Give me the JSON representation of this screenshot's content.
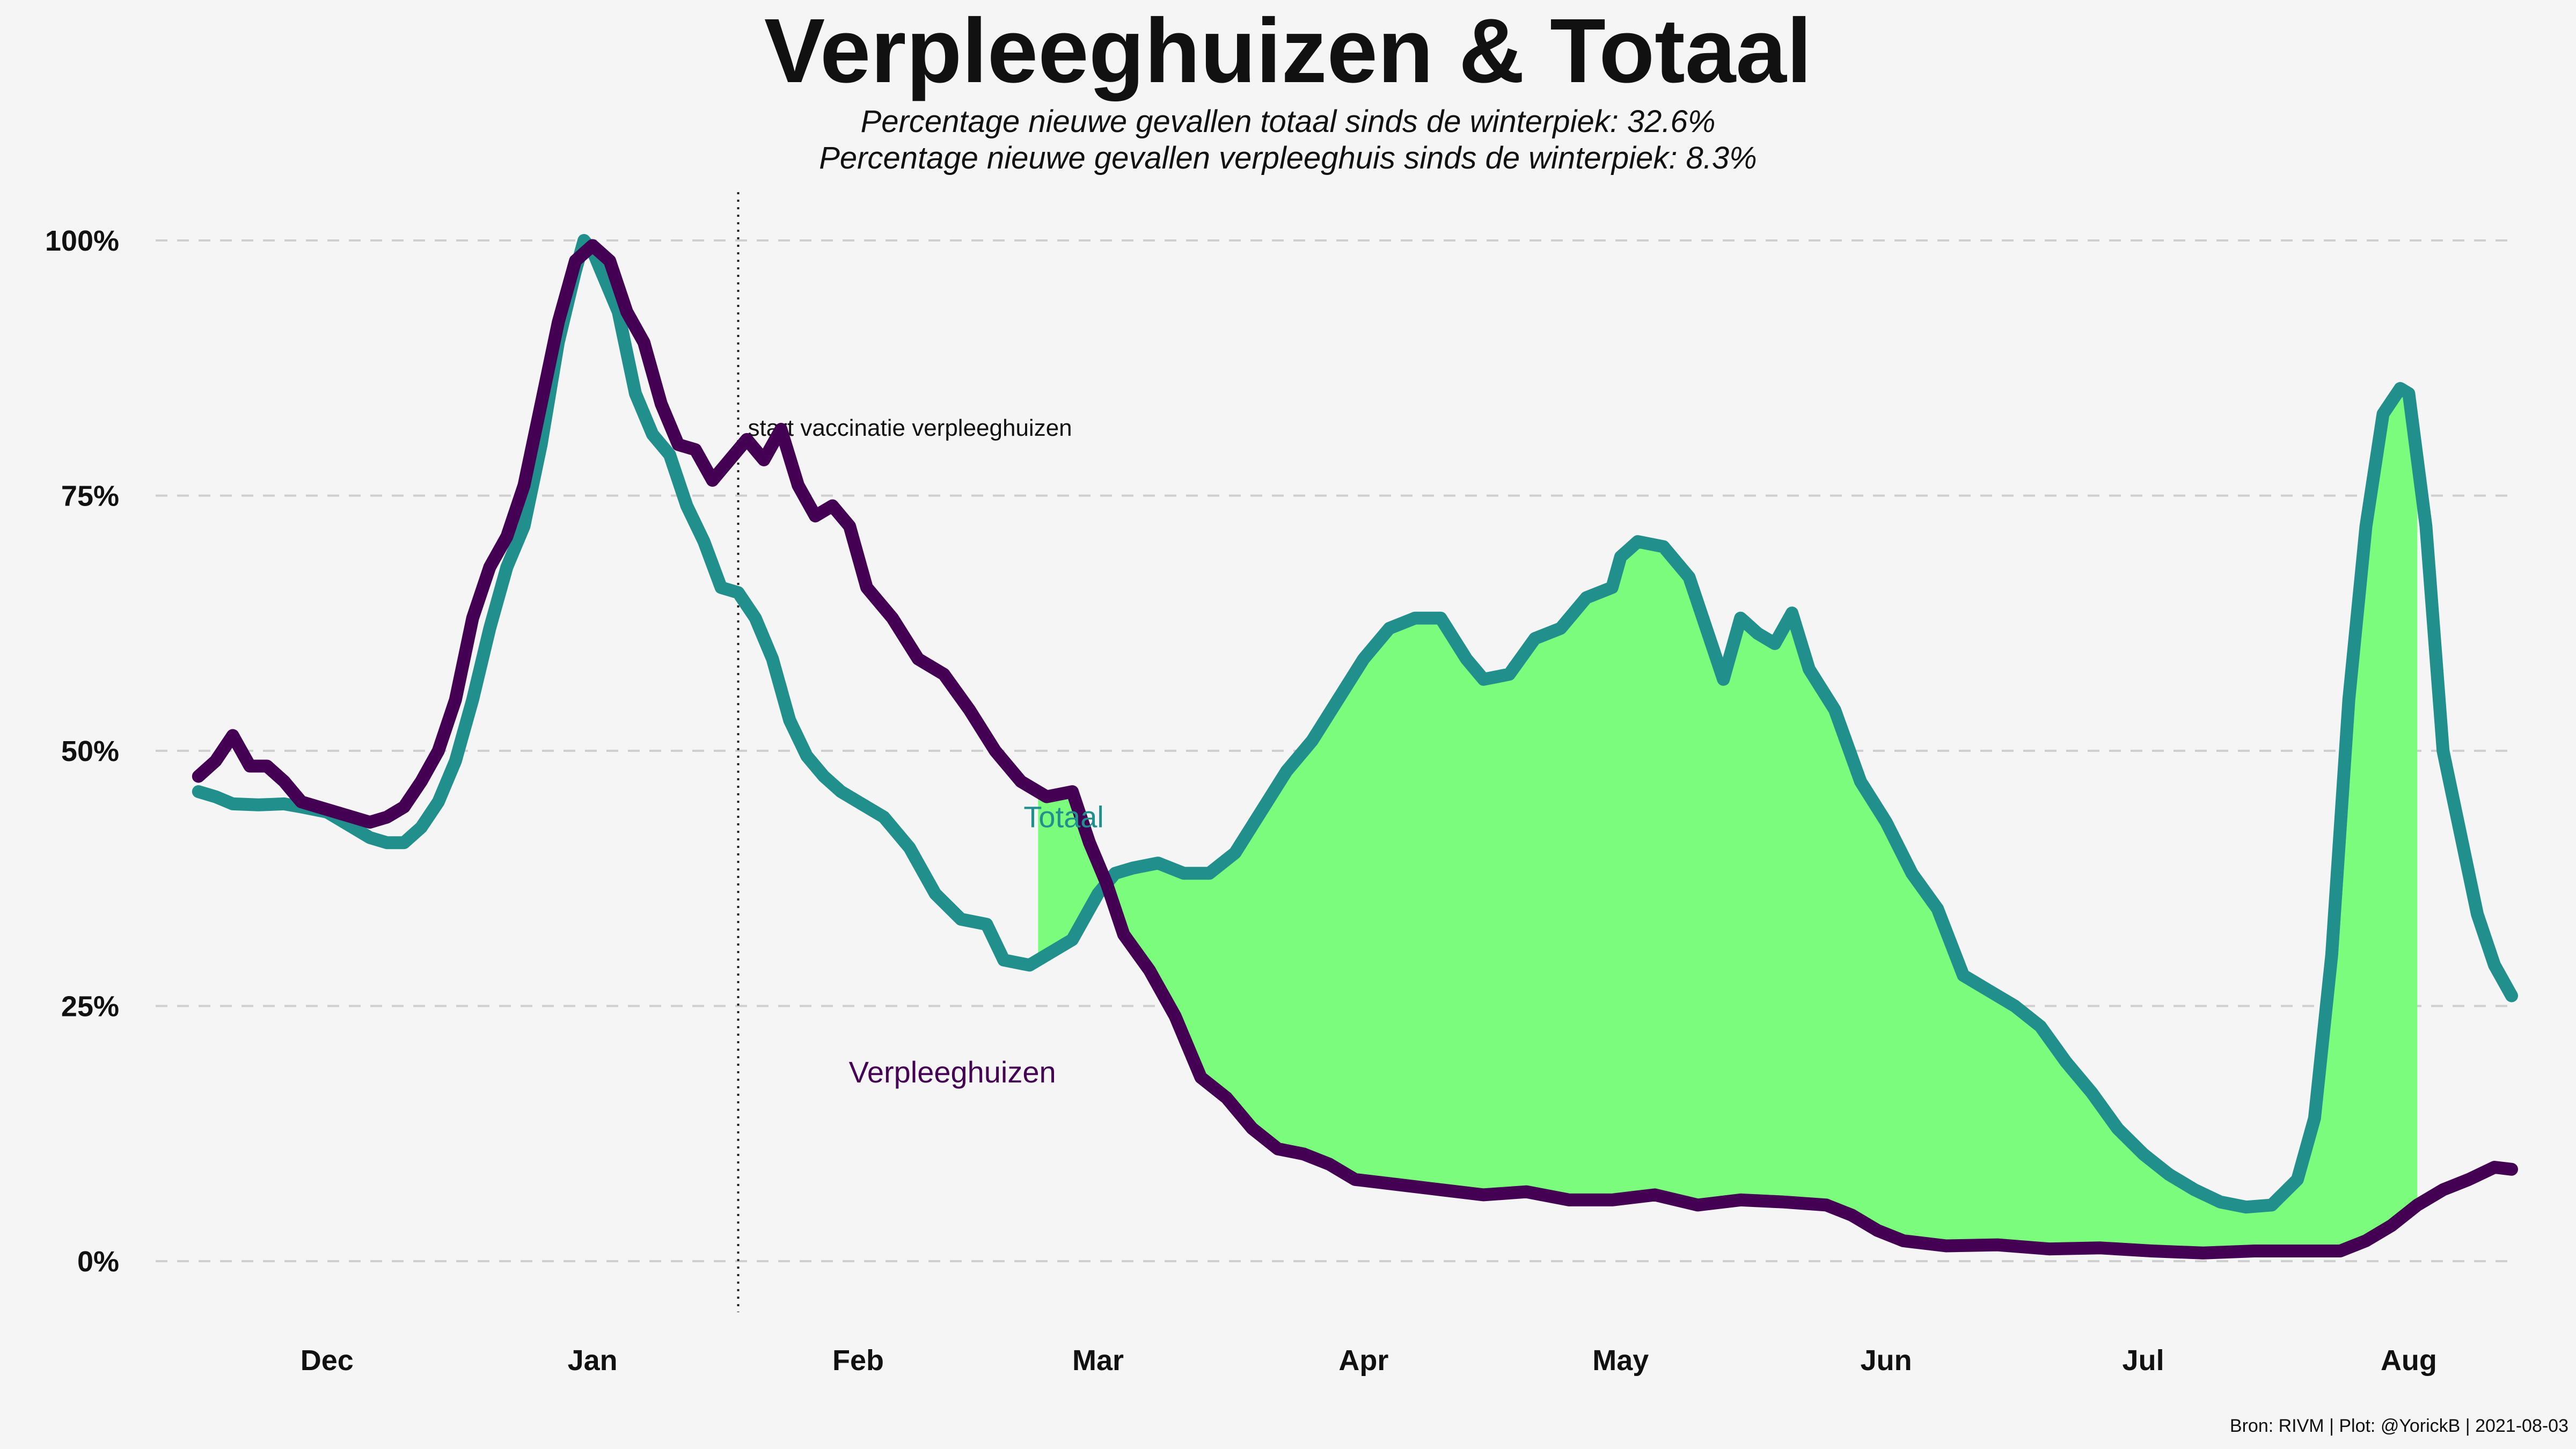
{
  "header": {
    "title": "Verpleeghuizen & Totaal",
    "subtitle_1": "Percentage nieuwe gevallen totaal sinds de winterpiek: 32.6%",
    "subtitle_2": "Percentage nieuwe gevallen verpleeghuis sinds de winterpiek: 8.3%"
  },
  "caption": "Bron: RIVM | Plot: @YorickB  |  2021-08-03",
  "colors": {
    "background": "#f5f5f5",
    "totaal": "#21908d",
    "verpleeghuizen": "#440154",
    "fill": "#7cfc7c",
    "grid": "#cfcfcf"
  },
  "chart_data": {
    "type": "line",
    "title": "Verpleeghuizen & Totaal",
    "xlabel": "",
    "ylabel": "",
    "ylim": [
      0,
      100
    ],
    "y_unit": "percent of winter peak",
    "grid": "horizontal dashed",
    "y_ticks": [
      {
        "value": 0,
        "label": "0%"
      },
      {
        "value": 25,
        "label": "25%"
      },
      {
        "value": 50,
        "label": "50%"
      },
      {
        "value": 75,
        "label": "75%"
      },
      {
        "value": 100,
        "label": "100%"
      }
    ],
    "xlim": [
      "2020-11-11",
      "2021-08-13"
    ],
    "x_ticks": [
      {
        "date": "2020-12-01",
        "label": "Dec"
      },
      {
        "date": "2021-01-01",
        "label": "Jan"
      },
      {
        "date": "2021-02-01",
        "label": "Feb"
      },
      {
        "date": "2021-03-01",
        "label": "Mar"
      },
      {
        "date": "2021-04-01",
        "label": "Apr"
      },
      {
        "date": "2021-05-01",
        "label": "May"
      },
      {
        "date": "2021-06-01",
        "label": "Jun"
      },
      {
        "date": "2021-07-01",
        "label": "Jul"
      },
      {
        "date": "2021-08-01",
        "label": "Aug"
      }
    ],
    "annotation": {
      "date": "2021-01-18",
      "text": "start vaccinatie verpleeghuizen"
    },
    "fill_between": {
      "upper": "Totaal",
      "lower": "Verpleeghuizen",
      "from": "2021-02-22",
      "to": "2021-08-02"
    },
    "series": [
      {
        "name": "Totaal",
        "label_position": {
          "date": "2021-02-25",
          "value": 42.5
        },
        "points": [
          [
            "2020-11-16",
            46
          ],
          [
            "2020-11-18",
            45.5
          ],
          [
            "2020-11-20",
            44.8
          ],
          [
            "2020-11-23",
            44.7
          ],
          [
            "2020-11-26",
            44.8
          ],
          [
            "2020-11-28",
            44.5
          ],
          [
            "2020-12-01",
            44
          ],
          [
            "2020-12-03",
            43
          ],
          [
            "2020-12-06",
            41.5
          ],
          [
            "2020-12-08",
            41
          ],
          [
            "2020-12-10",
            41
          ],
          [
            "2020-12-12",
            42.5
          ],
          [
            "2020-12-14",
            45
          ],
          [
            "2020-12-16",
            49
          ],
          [
            "2020-12-18",
            55
          ],
          [
            "2020-12-20",
            62
          ],
          [
            "2020-12-22",
            68
          ],
          [
            "2020-12-24",
            72
          ],
          [
            "2020-12-26",
            80
          ],
          [
            "2020-12-28",
            90
          ],
          [
            "2020-12-30",
            97
          ],
          [
            "2020-12-31",
            100
          ],
          [
            "2021-01-01",
            99
          ],
          [
            "2021-01-02",
            97
          ],
          [
            "2021-01-04",
            93
          ],
          [
            "2021-01-06",
            85
          ],
          [
            "2021-01-08",
            81
          ],
          [
            "2021-01-10",
            79
          ],
          [
            "2021-01-12",
            74
          ],
          [
            "2021-01-14",
            70.5
          ],
          [
            "2021-01-16",
            66
          ],
          [
            "2021-01-18",
            65.5
          ],
          [
            "2021-01-20",
            63
          ],
          [
            "2021-01-22",
            59
          ],
          [
            "2021-01-24",
            53
          ],
          [
            "2021-01-26",
            49.5
          ],
          [
            "2021-01-28",
            47.5
          ],
          [
            "2021-01-30",
            46
          ],
          [
            "2021-02-01",
            45
          ],
          [
            "2021-02-04",
            43.5
          ],
          [
            "2021-02-07",
            40.5
          ],
          [
            "2021-02-10",
            36
          ],
          [
            "2021-02-13",
            33.5
          ],
          [
            "2021-02-16",
            33
          ],
          [
            "2021-02-18",
            29.5
          ],
          [
            "2021-02-21",
            29
          ],
          [
            "2021-02-23",
            30
          ],
          [
            "2021-02-26",
            31.5
          ],
          [
            "2021-03-01",
            36
          ],
          [
            "2021-03-03",
            38
          ],
          [
            "2021-03-05",
            38.5
          ],
          [
            "2021-03-08",
            39
          ],
          [
            "2021-03-11",
            38
          ],
          [
            "2021-03-14",
            38
          ],
          [
            "2021-03-17",
            40
          ],
          [
            "2021-03-20",
            44
          ],
          [
            "2021-03-23",
            48
          ],
          [
            "2021-03-26",
            51
          ],
          [
            "2021-03-29",
            55
          ],
          [
            "2021-04-01",
            59
          ],
          [
            "2021-04-04",
            62
          ],
          [
            "2021-04-07",
            63
          ],
          [
            "2021-04-10",
            63
          ],
          [
            "2021-04-13",
            59
          ],
          [
            "2021-04-15",
            57
          ],
          [
            "2021-04-18",
            57.5
          ],
          [
            "2021-04-21",
            61
          ],
          [
            "2021-04-24",
            62
          ],
          [
            "2021-04-27",
            65
          ],
          [
            "2021-04-30",
            66
          ],
          [
            "2021-05-01",
            69
          ],
          [
            "2021-05-03",
            70.5
          ],
          [
            "2021-05-06",
            70
          ],
          [
            "2021-05-09",
            67
          ],
          [
            "2021-05-11",
            62
          ],
          [
            "2021-05-13",
            57
          ],
          [
            "2021-05-15",
            63
          ],
          [
            "2021-05-17",
            61.5
          ],
          [
            "2021-05-19",
            60.5
          ],
          [
            "2021-05-21",
            63.5
          ],
          [
            "2021-05-23",
            58
          ],
          [
            "2021-05-26",
            54
          ],
          [
            "2021-05-29",
            47
          ],
          [
            "2021-06-01",
            43
          ],
          [
            "2021-06-04",
            38
          ],
          [
            "2021-06-07",
            34.5
          ],
          [
            "2021-06-10",
            28
          ],
          [
            "2021-06-13",
            26.5
          ],
          [
            "2021-06-16",
            25
          ],
          [
            "2021-06-19",
            23
          ],
          [
            "2021-06-22",
            19.5
          ],
          [
            "2021-06-25",
            16.5
          ],
          [
            "2021-06-28",
            13
          ],
          [
            "2021-07-01",
            10.5
          ],
          [
            "2021-07-04",
            8.5
          ],
          [
            "2021-07-07",
            7
          ],
          [
            "2021-07-10",
            5.8
          ],
          [
            "2021-07-13",
            5.3
          ],
          [
            "2021-07-16",
            5.5
          ],
          [
            "2021-07-19",
            8
          ],
          [
            "2021-07-21",
            14
          ],
          [
            "2021-07-23",
            30
          ],
          [
            "2021-07-25",
            55
          ],
          [
            "2021-07-27",
            72
          ],
          [
            "2021-07-29",
            83
          ],
          [
            "2021-07-31",
            85.5
          ],
          [
            "2021-08-01",
            85
          ],
          [
            "2021-08-03",
            72
          ],
          [
            "2021-08-05",
            50
          ],
          [
            "2021-08-07",
            42
          ],
          [
            "2021-08-09",
            34
          ],
          [
            "2021-08-11",
            29
          ],
          [
            "2021-08-13",
            26
          ]
        ]
      },
      {
        "name": "Verpleeghuizen",
        "label_position": {
          "date": "2021-02-12",
          "value": 17.5
        },
        "points": [
          [
            "2020-11-16",
            47.5
          ],
          [
            "2020-11-18",
            49
          ],
          [
            "2020-11-20",
            51.5
          ],
          [
            "2020-11-22",
            48.5
          ],
          [
            "2020-11-24",
            48.5
          ],
          [
            "2020-11-26",
            47
          ],
          [
            "2020-11-28",
            45
          ],
          [
            "2020-11-30",
            44.5
          ],
          [
            "2020-12-02",
            44
          ],
          [
            "2020-12-04",
            43.5
          ],
          [
            "2020-12-06",
            43
          ],
          [
            "2020-12-08",
            43.5
          ],
          [
            "2020-12-10",
            44.5
          ],
          [
            "2020-12-12",
            47
          ],
          [
            "2020-12-14",
            50
          ],
          [
            "2020-12-16",
            55
          ],
          [
            "2020-12-18",
            63
          ],
          [
            "2020-12-20",
            68
          ],
          [
            "2020-12-22",
            71
          ],
          [
            "2020-12-24",
            76
          ],
          [
            "2020-12-26",
            84
          ],
          [
            "2020-12-28",
            92
          ],
          [
            "2020-12-30",
            98
          ],
          [
            "2021-01-01",
            99.5
          ],
          [
            "2021-01-03",
            98
          ],
          [
            "2021-01-05",
            93
          ],
          [
            "2021-01-07",
            90
          ],
          [
            "2021-01-09",
            84
          ],
          [
            "2021-01-11",
            80
          ],
          [
            "2021-01-13",
            79.5
          ],
          [
            "2021-01-15",
            76.5
          ],
          [
            "2021-01-17",
            78.5
          ],
          [
            "2021-01-19",
            80.5
          ],
          [
            "2021-01-21",
            78.5
          ],
          [
            "2021-01-23",
            81.5
          ],
          [
            "2021-01-25",
            76
          ],
          [
            "2021-01-27",
            73
          ],
          [
            "2021-01-29",
            74
          ],
          [
            "2021-01-31",
            72
          ],
          [
            "2021-02-02",
            66
          ],
          [
            "2021-02-05",
            63
          ],
          [
            "2021-02-08",
            59
          ],
          [
            "2021-02-11",
            57.5
          ],
          [
            "2021-02-14",
            54
          ],
          [
            "2021-02-17",
            50
          ],
          [
            "2021-02-20",
            47
          ],
          [
            "2021-02-23",
            45.5
          ],
          [
            "2021-02-26",
            46
          ],
          [
            "2021-02-28",
            41
          ],
          [
            "2021-03-02",
            37
          ],
          [
            "2021-03-04",
            32
          ],
          [
            "2021-03-07",
            28.5
          ],
          [
            "2021-03-10",
            24
          ],
          [
            "2021-03-13",
            18
          ],
          [
            "2021-03-16",
            16
          ],
          [
            "2021-03-19",
            13
          ],
          [
            "2021-03-22",
            11
          ],
          [
            "2021-03-25",
            10.5
          ],
          [
            "2021-03-28",
            9.5
          ],
          [
            "2021-03-31",
            8
          ],
          [
            "2021-04-05",
            7.5
          ],
          [
            "2021-04-10",
            7
          ],
          [
            "2021-04-15",
            6.5
          ],
          [
            "2021-04-20",
            6.8
          ],
          [
            "2021-04-25",
            6
          ],
          [
            "2021-04-30",
            6
          ],
          [
            "2021-05-05",
            6.5
          ],
          [
            "2021-05-10",
            5.5
          ],
          [
            "2021-05-15",
            6
          ],
          [
            "2021-05-20",
            5.8
          ],
          [
            "2021-05-25",
            5.5
          ],
          [
            "2021-05-28",
            4.5
          ],
          [
            "2021-05-31",
            3
          ],
          [
            "2021-06-03",
            2
          ],
          [
            "2021-06-08",
            1.5
          ],
          [
            "2021-06-14",
            1.6
          ],
          [
            "2021-06-20",
            1.2
          ],
          [
            "2021-06-26",
            1.3
          ],
          [
            "2021-07-02",
            1
          ],
          [
            "2021-07-08",
            0.8
          ],
          [
            "2021-07-14",
            1
          ],
          [
            "2021-07-20",
            1
          ],
          [
            "2021-07-24",
            1
          ],
          [
            "2021-07-27",
            2
          ],
          [
            "2021-07-30",
            3.5
          ],
          [
            "2021-08-02",
            5.5
          ],
          [
            "2021-08-05",
            7
          ],
          [
            "2021-08-08",
            8
          ],
          [
            "2021-08-11",
            9.2
          ],
          [
            "2021-08-13",
            9
          ]
        ]
      }
    ]
  }
}
